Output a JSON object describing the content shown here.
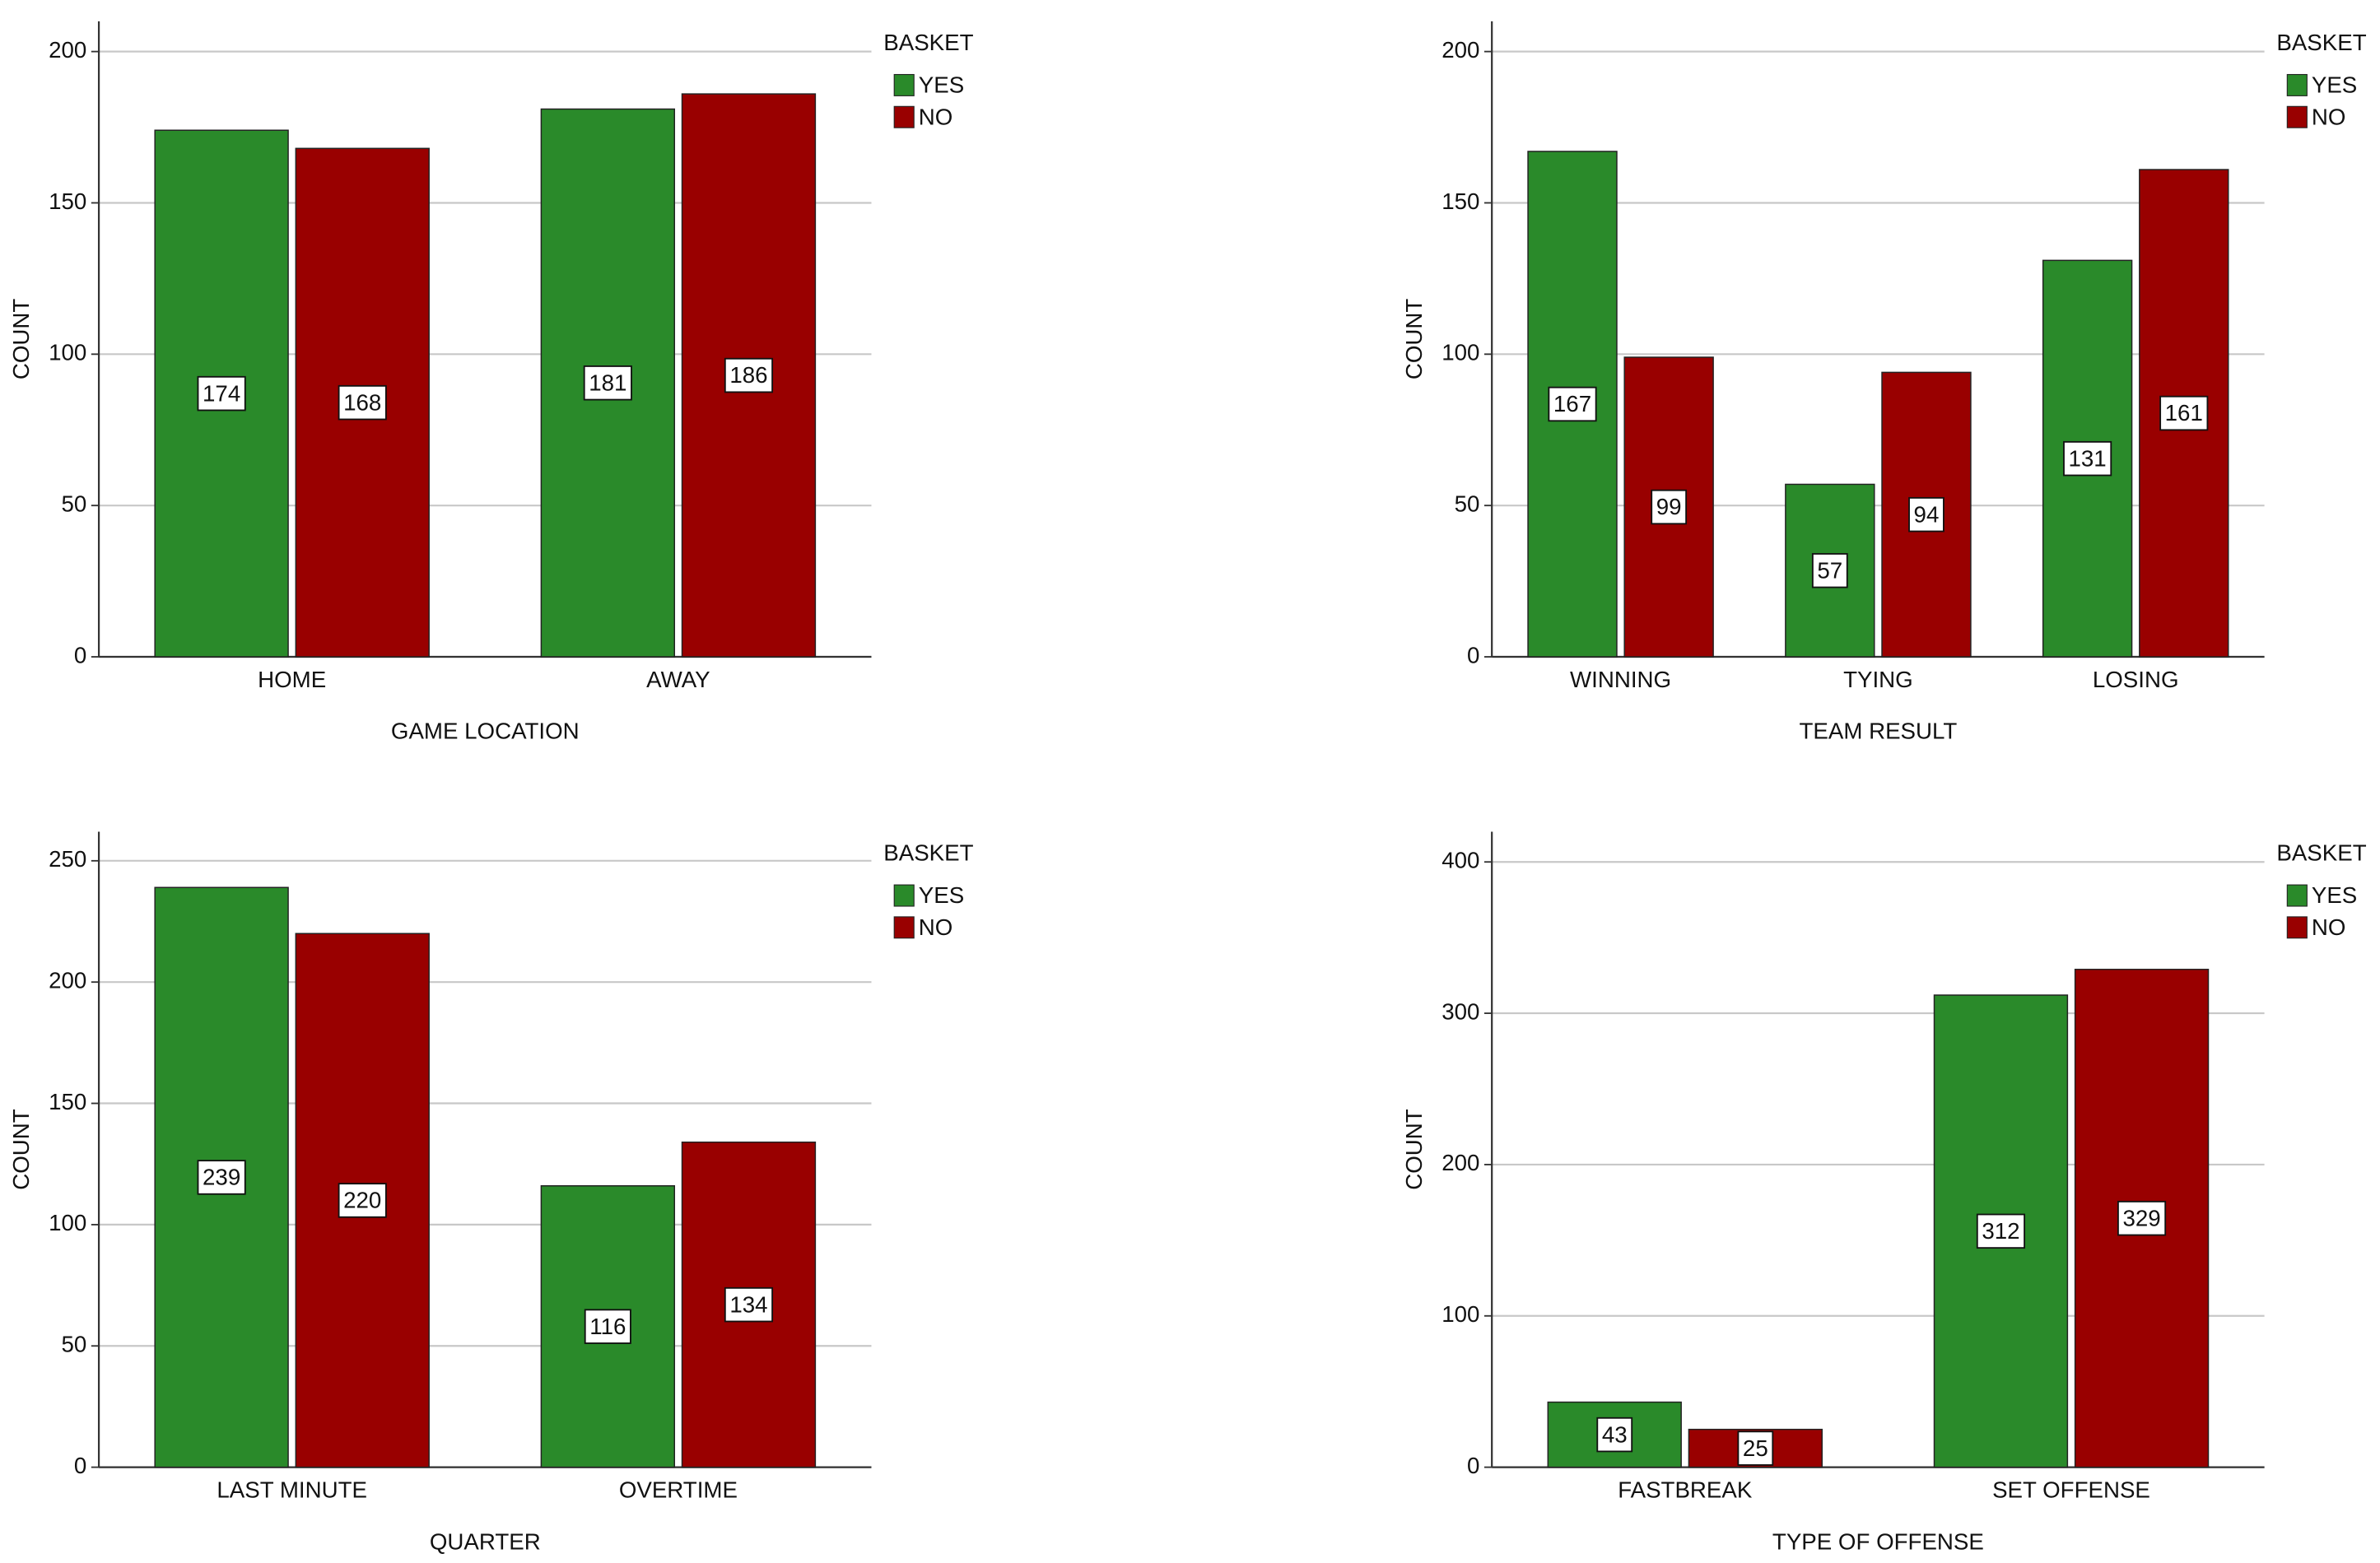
{
  "chart_data": [
    {
      "type": "bar",
      "x_label": "GAME LOCATION",
      "y_label": "COUNT",
      "legend_title": "BASKET",
      "categories": [
        "HOME",
        "AWAY"
      ],
      "series": [
        {
          "name": "YES",
          "color": "#2a8a2a",
          "values": [
            174,
            181
          ]
        },
        {
          "name": "NO",
          "color": "#990000",
          "values": [
            168,
            186
          ]
        }
      ],
      "ylim": [
        0,
        210
      ],
      "yticks": [
        0,
        50,
        100,
        150,
        200
      ],
      "grid": true
    },
    {
      "type": "bar",
      "x_label": "TEAM RESULT",
      "y_label": "COUNT",
      "legend_title": "BASKET",
      "categories": [
        "WINNING",
        "TYING",
        "LOSING"
      ],
      "series": [
        {
          "name": "YES",
          "color": "#2a8a2a",
          "values": [
            167,
            57,
            131
          ]
        },
        {
          "name": "NO",
          "color": "#990000",
          "values": [
            99,
            94,
            161
          ]
        }
      ],
      "ylim": [
        0,
        210
      ],
      "yticks": [
        0,
        50,
        100,
        150,
        200
      ],
      "grid": true
    },
    {
      "type": "bar",
      "x_label": "QUARTER",
      "y_label": "COUNT",
      "legend_title": "BASKET",
      "categories": [
        "LAST MINUTE",
        "OVERTIME"
      ],
      "series": [
        {
          "name": "YES",
          "color": "#2a8a2a",
          "values": [
            239,
            116
          ]
        },
        {
          "name": "NO",
          "color": "#990000",
          "values": [
            220,
            134
          ]
        }
      ],
      "ylim": [
        0,
        262
      ],
      "yticks": [
        0,
        50,
        100,
        150,
        200,
        250
      ],
      "grid": true
    },
    {
      "type": "bar",
      "x_label": "TYPE OF OFFENSE",
      "y_label": "COUNT",
      "legend_title": "BASKET",
      "categories": [
        "FASTBREAK",
        "SET OFFENSE"
      ],
      "series": [
        {
          "name": "YES",
          "color": "#2a8a2a",
          "values": [
            43,
            312
          ]
        },
        {
          "name": "NO",
          "color": "#990000",
          "values": [
            25,
            329
          ]
        }
      ],
      "ylim": [
        0,
        420
      ],
      "yticks": [
        0,
        100,
        200,
        300,
        400
      ],
      "grid": true
    }
  ]
}
